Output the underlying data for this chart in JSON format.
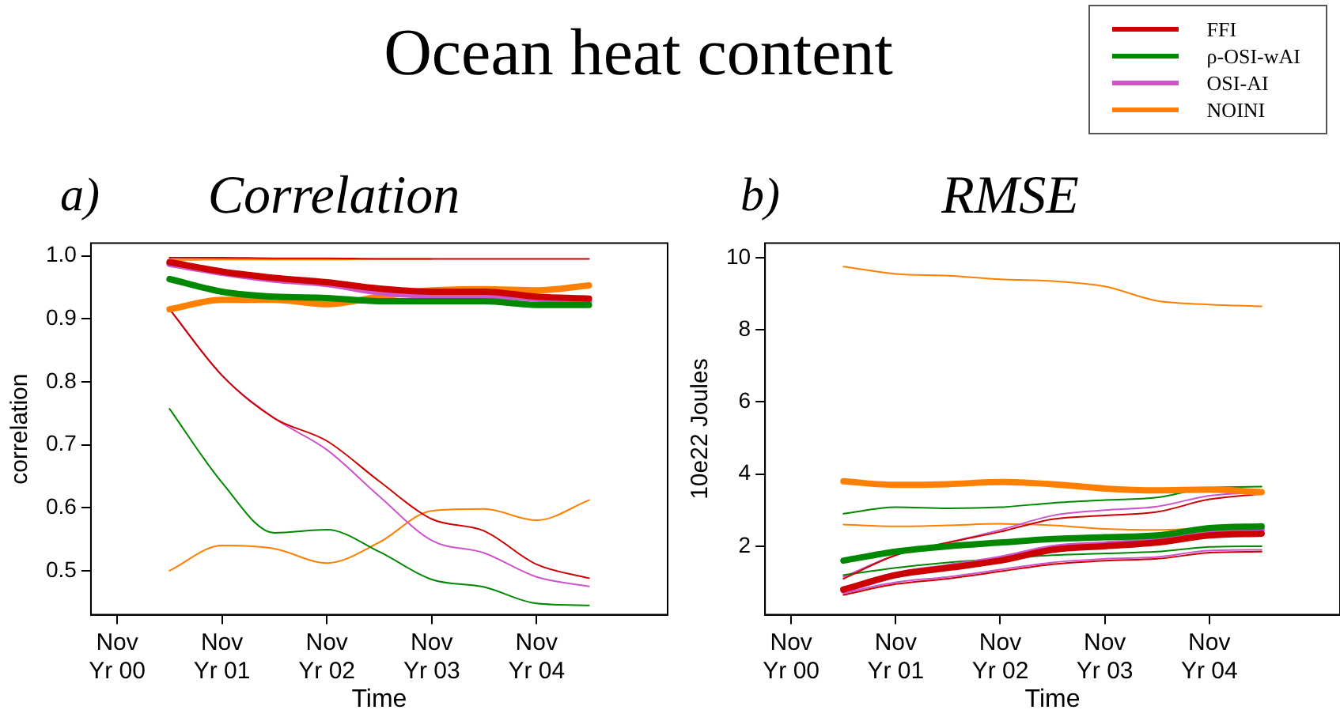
{
  "chart_data": [
    {
      "type": "line",
      "title": "Correlation",
      "annotations": [
        "Ocean heat content",
        "a)"
      ],
      "xlabel": "Time",
      "ylabel": "correlation",
      "categories": [
        "Nov Yr 00",
        null,
        "Nov Yr 01",
        null,
        "Nov Yr 02",
        null,
        "Nov Yr 03",
        null,
        "Nov Yr 04",
        null,
        null
      ],
      "ylim": [
        0.43,
        1.02
      ],
      "yticks": [
        0.5,
        0.6,
        0.7,
        0.8,
        0.9,
        {
          "value": 1,
          "label": "1.0"
        }
      ],
      "grid": false,
      "legend": false,
      "series": [
        {
          "color": "#cc0000",
          "values": [
            null,
            0.99,
            0.975,
            0.965,
            0.958,
            0.948,
            0.943,
            0.943,
            0.935,
            0.932,
            null
          ]
        },
        {
          "color": "#008800",
          "values": [
            null,
            0.963,
            0.943,
            0.935,
            0.933,
            0.928,
            0.928,
            0.928,
            0.922,
            0.922,
            null
          ]
        },
        {
          "color": "#cc55cc",
          "values": [
            null,
            0.987,
            0.973,
            0.962,
            0.955,
            0.942,
            0.937,
            0.937,
            0.932,
            0.928,
            null
          ]
        },
        {
          "color": "#ff8000",
          "values": [
            null,
            0.915,
            0.93,
            0.93,
            0.923,
            0.935,
            0.945,
            0.947,
            0.945,
            0.953,
            null
          ]
        },
        {
          "color": "#cc0000",
          "values": [
            null,
            0.915,
            0.81,
            0.742,
            0.706,
            0.642,
            0.582,
            0.563,
            0.51,
            0.488,
            null
          ]
        },
        {
          "color": "#cc0000",
          "values": [
            null,
            0.997,
            0.997,
            0.996,
            0.996,
            0.995,
            0.995,
            0.995,
            0.995,
            0.995,
            null
          ]
        },
        {
          "color": "#008800",
          "values": [
            null,
            0.757,
            0.64,
            0.56,
            0.565,
            0.53,
            0.486,
            0.474,
            0.448,
            0.445,
            null
          ]
        },
        {
          "color": "#cc55cc",
          "values": [
            null,
            0.915,
            0.81,
            0.742,
            0.692,
            0.618,
            0.548,
            0.528,
            0.49,
            0.475,
            null
          ]
        },
        {
          "color": "#ff8000",
          "values": [
            null,
            0.5,
            0.54,
            0.535,
            0.512,
            0.545,
            0.595,
            0.598,
            0.58,
            0.612,
            null
          ]
        },
        {
          "color": "#ff8000",
          "values": [
            null,
            0.993,
            0.994,
            0.994,
            0.994,
            0.995,
            0.995,
            null,
            null,
            null,
            null
          ]
        }
      ]
    },
    {
      "type": "line",
      "title": "RMSE",
      "annotations": [
        "b)"
      ],
      "xlabel": "Time",
      "ylabel": "10e22 Joules",
      "categories": [
        "Nov Yr 00",
        null,
        "Nov Yr 01",
        null,
        "Nov Yr 02",
        null,
        "Nov Yr 03",
        null,
        "Nov Yr 04",
        null,
        null
      ],
      "ylim": [
        0.1,
        10.4
      ],
      "yticks": [
        2,
        4,
        6,
        8,
        10
      ],
      "grid": false,
      "legend": "top right",
      "series": [
        {
          "name": "FFI",
          "color": "#cc0000",
          "values": [
            null,
            0.8,
            1.2,
            1.4,
            1.6,
            1.9,
            2.0,
            2.1,
            2.3,
            2.35,
            null
          ]
        },
        {
          "name": "ρ-OSI-wAI",
          "color": "#008800",
          "values": [
            null,
            1.6,
            1.85,
            2.0,
            2.1,
            2.2,
            2.25,
            2.3,
            2.5,
            2.55,
            null
          ]
        },
        {
          "name": "OSI-AI",
          "color": "#cc55cc",
          "values": [
            null,
            0.78,
            1.2,
            1.42,
            1.65,
            1.95,
            2.05,
            2.15,
            2.4,
            2.45,
            null
          ]
        },
        {
          "name": "NOINI",
          "color": "#ff8000",
          "values": [
            null,
            3.8,
            3.7,
            3.72,
            3.78,
            3.72,
            3.6,
            3.55,
            3.57,
            3.5,
            null
          ]
        },
        {
          "color": "#cc0000",
          "values": [
            null,
            0.65,
            0.95,
            1.1,
            1.3,
            1.5,
            1.6,
            1.65,
            1.82,
            1.85,
            null
          ]
        },
        {
          "color": "#cc0000",
          "values": [
            null,
            1.1,
            1.75,
            2.1,
            2.4,
            2.75,
            2.85,
            2.95,
            3.3,
            3.45,
            null
          ]
        },
        {
          "color": "#008800",
          "values": [
            null,
            1.2,
            1.4,
            1.55,
            1.65,
            1.75,
            1.8,
            1.85,
            1.98,
            2.0,
            null
          ]
        },
        {
          "color": "#008800",
          "values": [
            null,
            2.9,
            3.08,
            3.05,
            3.08,
            3.2,
            3.28,
            3.35,
            3.62,
            3.65,
            null
          ]
        },
        {
          "color": "#cc55cc",
          "values": [
            null,
            0.7,
            1.0,
            1.15,
            1.35,
            1.55,
            1.65,
            1.7,
            1.88,
            1.9,
            null
          ]
        },
        {
          "color": "#cc55cc",
          "values": [
            null,
            1.15,
            1.75,
            2.1,
            2.45,
            2.85,
            3.0,
            3.1,
            3.4,
            3.5,
            null
          ]
        },
        {
          "color": "#ff8000",
          "values": [
            null,
            2.6,
            2.55,
            2.58,
            2.62,
            2.58,
            2.48,
            2.45,
            2.5,
            2.45,
            null
          ]
        },
        {
          "color": "#ff8000",
          "values": [
            null,
            9.75,
            9.55,
            9.5,
            9.4,
            9.35,
            9.2,
            8.8,
            8.7,
            8.65,
            null
          ]
        }
      ]
    }
  ]
}
